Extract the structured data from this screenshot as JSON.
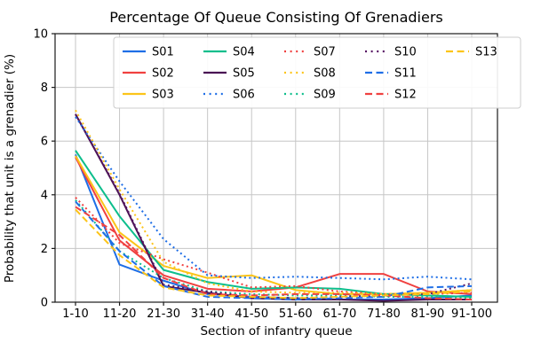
{
  "chart_data": {
    "type": "line",
    "title": "Percentage Of Queue Consisting Of Grenadiers",
    "xlabel": "Section of infantry queue",
    "ylabel": "Probability that unit is a grenadier (%)",
    "categories": [
      "1-10",
      "11-20",
      "21-30",
      "31-40",
      "41-50",
      "51-60",
      "61-70",
      "71-80",
      "81-90",
      "91-100"
    ],
    "ylim": [
      0,
      10
    ],
    "yticks": [
      0,
      2,
      4,
      6,
      8,
      10
    ],
    "grid": true,
    "grid_color": "#c6c6c6",
    "spine_color": "#1a1a1a",
    "legend": {
      "location": "upper center",
      "columns": 5,
      "rows": 3,
      "order": "column-major",
      "border_color": "#cccccc"
    },
    "palette": {
      "blue": "#1e6ee6",
      "red": "#f04140",
      "yellow": "#fcc419",
      "green": "#0dbe8c",
      "purple": "#4a1254",
      "purple2": "#571563"
    },
    "series": [
      {
        "name": "S01",
        "color": "#1e6ee6",
        "style": "solid",
        "values": [
          5.5,
          1.4,
          0.8,
          0.3,
          0.2,
          0.15,
          0.1,
          0.1,
          0.15,
          0.25
        ]
      },
      {
        "name": "S02",
        "color": "#f04140",
        "style": "solid",
        "values": [
          5.4,
          2.3,
          1.0,
          0.5,
          0.4,
          0.55,
          1.05,
          1.05,
          0.4,
          0.3
        ]
      },
      {
        "name": "S03",
        "color": "#fcc419",
        "style": "solid",
        "values": [
          5.45,
          2.6,
          1.35,
          0.9,
          1.0,
          0.45,
          0.3,
          0.3,
          0.35,
          0.45
        ]
      },
      {
        "name": "S04",
        "color": "#0dbe8c",
        "style": "solid",
        "values": [
          5.65,
          3.2,
          1.2,
          0.75,
          0.5,
          0.55,
          0.5,
          0.3,
          0.25,
          0.2
        ]
      },
      {
        "name": "S05",
        "color": "#4a1254",
        "style": "solid",
        "values": [
          7.0,
          4.0,
          0.6,
          0.35,
          0.15,
          0.1,
          0.1,
          0.05,
          0.1,
          0.1
        ]
      },
      {
        "name": "S06",
        "color": "#1e6ee6",
        "style": "dotted",
        "values": [
          6.9,
          4.5,
          2.35,
          1.0,
          0.9,
          0.95,
          0.9,
          0.85,
          0.95,
          0.85
        ]
      },
      {
        "name": "S07",
        "color": "#f04140",
        "style": "dotted",
        "values": [
          3.9,
          2.2,
          1.6,
          1.1,
          0.55,
          0.6,
          0.4,
          0.3,
          0.3,
          0.35
        ]
      },
      {
        "name": "S08",
        "color": "#fcc419",
        "style": "dotted",
        "values": [
          7.15,
          4.2,
          1.5,
          0.7,
          0.4,
          0.35,
          0.35,
          0.3,
          0.35,
          0.45
        ]
      },
      {
        "name": "S09",
        "color": "#0dbe8c",
        "style": "dotted",
        "values": [
          3.8,
          1.9,
          0.9,
          0.4,
          0.3,
          0.25,
          0.25,
          0.2,
          0.2,
          0.15
        ]
      },
      {
        "name": "S10",
        "color": "#571563",
        "style": "dotted",
        "values": [
          7.0,
          4.05,
          0.65,
          0.4,
          0.2,
          0.15,
          0.2,
          0.25,
          0.3,
          0.7
        ]
      },
      {
        "name": "S11",
        "color": "#1e6ee6",
        "style": "dashed",
        "values": [
          3.75,
          1.9,
          0.6,
          0.2,
          0.15,
          0.1,
          0.15,
          0.2,
          0.55,
          0.6
        ]
      },
      {
        "name": "S12",
        "color": "#f04140",
        "style": "dashed",
        "values": [
          3.55,
          2.5,
          0.9,
          0.3,
          0.25,
          0.3,
          0.3,
          0.25,
          0.15,
          0.1
        ]
      },
      {
        "name": "S13",
        "color": "#fcc419",
        "style": "dashed",
        "values": [
          3.45,
          1.75,
          0.55,
          0.25,
          0.2,
          0.15,
          0.2,
          0.25,
          0.3,
          0.4
        ]
      }
    ]
  }
}
